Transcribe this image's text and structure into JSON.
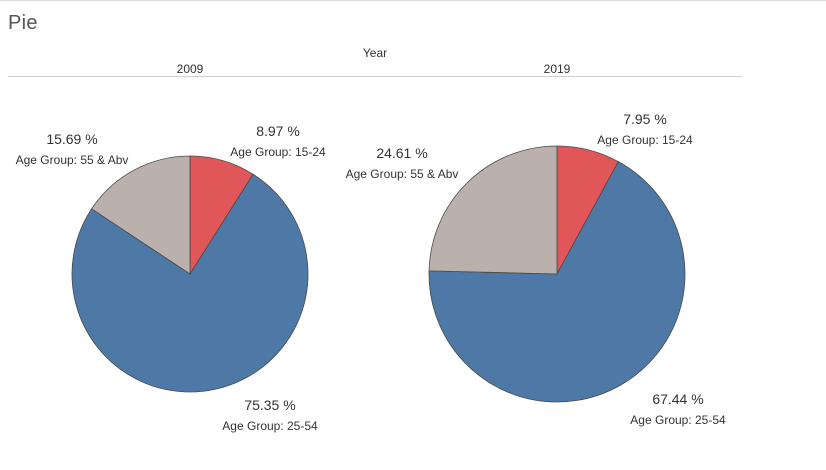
{
  "sheet": {
    "title": "Pie",
    "column_header": "Year"
  },
  "colors": {
    "Age Group: 15-24": "#e15759",
    "Age Group: 25-54": "#4e79a7",
    "Age Group: 55 & Abv": "#bab0ac",
    "slice_stroke": "#4a4a4a"
  },
  "chart_data": [
    {
      "type": "pie",
      "pane": "2009",
      "slices": [
        {
          "label": "Age Group: 15-24",
          "value": 8.97,
          "display": "8.97 %"
        },
        {
          "label": "Age Group: 25-54",
          "value": 75.35,
          "display": "75.35 %"
        },
        {
          "label": "Age Group: 55 & Abv",
          "value": 15.69,
          "display": "15.69 %"
        }
      ]
    },
    {
      "type": "pie",
      "pane": "2019",
      "slices": [
        {
          "label": "Age Group: 15-24",
          "value": 7.95,
          "display": "7.95 %"
        },
        {
          "label": "Age Group: 25-54",
          "value": 67.44,
          "display": "67.44 %"
        },
        {
          "label": "Age Group: 55 & Abv",
          "value": 24.61,
          "display": "24.61 %"
        }
      ]
    }
  ]
}
